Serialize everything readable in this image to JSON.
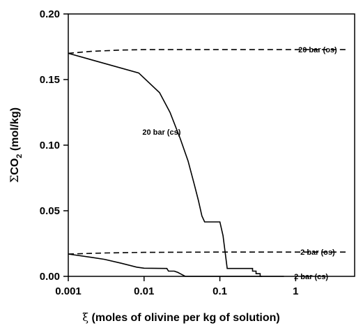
{
  "chart_data": {
    "type": "line",
    "xscale": "log",
    "xlim": [
      0.001,
      6
    ],
    "ylim": [
      0,
      0.2
    ],
    "x_ticks": [
      0.001,
      0.01,
      0.1,
      1
    ],
    "x_tick_labels": [
      "0.001",
      "0.01",
      "0.1",
      "1"
    ],
    "y_ticks": [
      0,
      0.05,
      0.1,
      0.15,
      0.2
    ],
    "y_tick_labels": [
      "0.00",
      "0.05",
      "0.10",
      "0.15",
      "0.20"
    ],
    "xlabel": {
      "symbol": "ξ",
      "text": "(moles of olivine per kg of solution)"
    },
    "ylabel": {
      "sigma": "Σ",
      "base": "CO",
      "sub": "2",
      "rest": "(mol/kg)"
    },
    "grid": false,
    "series": [
      {
        "name": "20 bar (os)",
        "style": "dashed",
        "points": [
          [
            0.001,
            0.17
          ],
          [
            0.002,
            0.1715
          ],
          [
            0.005,
            0.1725
          ],
          [
            0.01,
            0.1728
          ],
          [
            0.1,
            0.1728
          ],
          [
            1,
            0.1728
          ],
          [
            5,
            0.1728
          ]
        ]
      },
      {
        "name": "20 bar (cs)",
        "style": "solid",
        "points": [
          [
            0.001,
            0.17
          ],
          [
            0.0085,
            0.155
          ],
          [
            0.016,
            0.14
          ],
          [
            0.022,
            0.125
          ],
          [
            0.03,
            0.105
          ],
          [
            0.038,
            0.088
          ],
          [
            0.046,
            0.07
          ],
          [
            0.052,
            0.058
          ],
          [
            0.058,
            0.046
          ],
          [
            0.063,
            0.0415
          ],
          [
            0.1,
            0.0415
          ],
          [
            0.11,
            0.031
          ],
          [
            0.125,
            0.006
          ],
          [
            0.27,
            0.006
          ],
          [
            0.27,
            0.004
          ],
          [
            0.3,
            0.004
          ],
          [
            0.3,
            0.002
          ],
          [
            0.34,
            0.002
          ],
          [
            0.34,
            0.0
          ],
          [
            0.36,
            0.0
          ]
        ]
      },
      {
        "name": "2 bar (os)",
        "style": "dashed",
        "points": [
          [
            0.001,
            0.017
          ],
          [
            0.003,
            0.0178
          ],
          [
            0.01,
            0.0183
          ],
          [
            0.1,
            0.0185
          ],
          [
            1,
            0.0185
          ],
          [
            5,
            0.0185
          ]
        ]
      },
      {
        "name": "2 bar (cs)",
        "style": "solid",
        "points": [
          [
            0.001,
            0.017
          ],
          [
            0.002,
            0.0145
          ],
          [
            0.003,
            0.013
          ],
          [
            0.005,
            0.01
          ],
          [
            0.008,
            0.007
          ],
          [
            0.01,
            0.0062
          ],
          [
            0.02,
            0.006
          ],
          [
            0.021,
            0.004
          ],
          [
            0.025,
            0.004
          ],
          [
            0.028,
            0.003
          ],
          [
            0.03,
            0.002
          ],
          [
            0.035,
            0.0
          ],
          [
            0.7,
            0.0
          ]
        ]
      }
    ],
    "annotations": [
      {
        "text": "20 bar (os)",
        "x": 1.95,
        "y": 0.1728
      },
      {
        "text": "20 bar (cs)",
        "x": 0.017,
        "y": 0.11
      },
      {
        "text": "2 bar (os)",
        "x": 1.95,
        "y": 0.0185
      },
      {
        "text": "2 bar (cs)",
        "x": 1.6,
        "y": 0.0
      }
    ]
  }
}
